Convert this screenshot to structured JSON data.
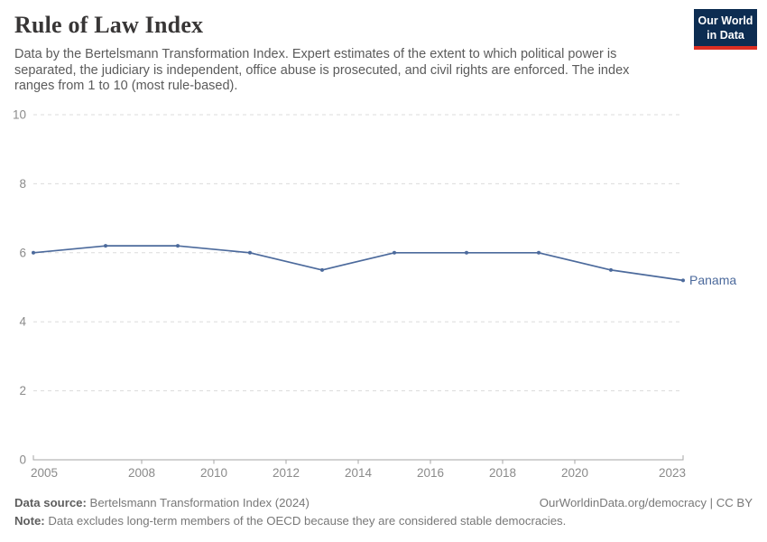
{
  "header": {
    "title": "Rule of Law Index",
    "subtitle": "Data by the Bertelsmann Transformation Index. Expert estimates of the extent to which political power is separated, the judiciary is independent, office abuse is prosecuted, and civil rights are enforced. The index ranges from 1 to 10 (most rule-based).",
    "logo": {
      "line1": "Our World",
      "line2": "in Data",
      "bg_color": "#0d2d52",
      "accent_color": "#dc2e22"
    }
  },
  "chart_data": {
    "type": "line",
    "title": "Rule of Law Index",
    "x": [
      2005,
      2007,
      2009,
      2011,
      2013,
      2015,
      2017,
      2019,
      2021,
      2023
    ],
    "series": [
      {
        "name": "Panama",
        "values": [
          6.0,
          6.2,
          6.2,
          6.0,
          5.5,
          6.0,
          6.0,
          6.0,
          5.5,
          5.2
        ],
        "color": "#4C6A9C"
      }
    ],
    "xlabel": "",
    "ylabel": "",
    "xlim": [
      2005,
      2023
    ],
    "ylim": [
      0,
      10
    ],
    "yticks": [
      0,
      2,
      4,
      6,
      8,
      10
    ],
    "xticks": [
      2005,
      2008,
      2010,
      2012,
      2014,
      2016,
      2018,
      2020,
      2023
    ],
    "grid": "horizontal dashed",
    "grid_color": "#dcdcdc",
    "axis_color": "#a5a5a5",
    "tick_label_color": "#8b8b8b",
    "legend_position": "end-of-line label",
    "point_markers": true
  },
  "footer": {
    "source_label": "Data source:",
    "source_text": " Bertelsmann Transformation Index (2024)",
    "rights": "OurWorldinData.org/democracy | CC BY",
    "note_label": "Note:",
    "note_text": " Data excludes long-term members of the OECD because they are considered stable democracies."
  }
}
